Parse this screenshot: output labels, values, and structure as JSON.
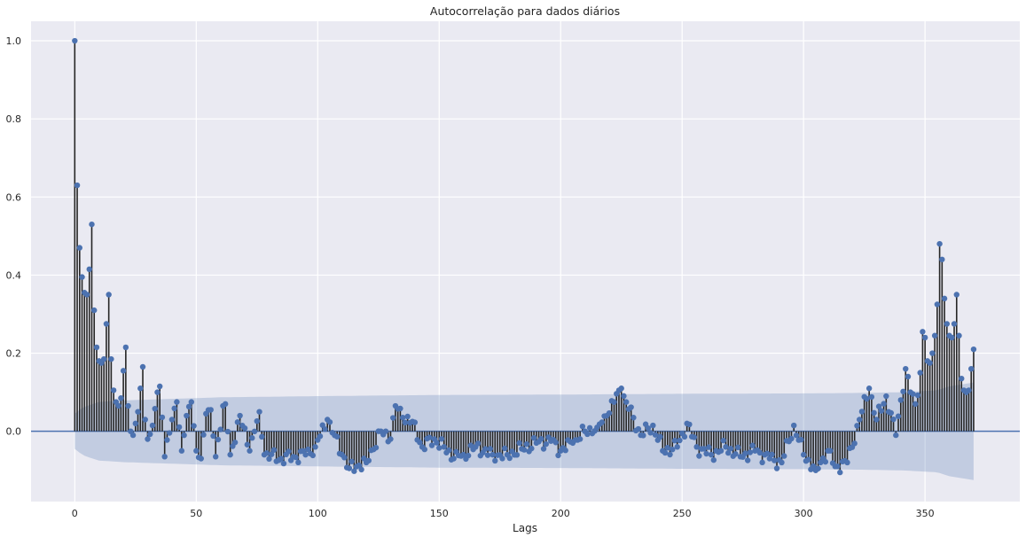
{
  "chart_data": {
    "type": "stem",
    "title": "Autocorrelação para dados diários",
    "xlabel": "Lags",
    "ylabel": "",
    "xlim": [
      -18,
      389
    ],
    "ylim": [
      -0.18,
      1.05
    ],
    "xticks": [
      0,
      50,
      100,
      150,
      200,
      250,
      300,
      350
    ],
    "xtick_labels": [
      "0",
      "50",
      "100",
      "150",
      "200",
      "250",
      "300",
      "350"
    ],
    "yticks": [
      0.0,
      0.2,
      0.4,
      0.6,
      0.8,
      1.0
    ],
    "ytick_labels": [
      "0.0",
      "0.2",
      "0.4",
      "0.6",
      "0.8",
      "1.0"
    ],
    "grid": true,
    "lags": [
      0,
      370
    ],
    "acf_anchors": [
      [
        0,
        1.0
      ],
      [
        1,
        0.63
      ],
      [
        2,
        0.47
      ],
      [
        3,
        0.395
      ],
      [
        4,
        0.355
      ],
      [
        5,
        0.35
      ],
      [
        6,
        0.415
      ],
      [
        7,
        0.53
      ],
      [
        8,
        0.31
      ],
      [
        9,
        0.215
      ],
      [
        10,
        0.18
      ],
      [
        11,
        0.175
      ],
      [
        12,
        0.185
      ],
      [
        13,
        0.275
      ],
      [
        14,
        0.35
      ],
      [
        15,
        0.185
      ],
      [
        16,
        0.105
      ],
      [
        17,
        0.075
      ],
      [
        18,
        0.065
      ],
      [
        19,
        0.085
      ],
      [
        20,
        0.155
      ],
      [
        21,
        0.215
      ],
      [
        22,
        0.065
      ],
      [
        23,
        0.0
      ],
      [
        24,
        -0.01
      ],
      [
        25,
        0.02
      ],
      [
        26,
        0.05
      ],
      [
        27,
        0.11
      ],
      [
        28,
        0.165
      ],
      [
        29,
        0.03
      ],
      [
        30,
        -0.02
      ],
      [
        32,
        0.015
      ],
      [
        34,
        0.1
      ],
      [
        35,
        0.115
      ],
      [
        37,
        -0.065
      ],
      [
        40,
        0.03
      ],
      [
        42,
        0.075
      ],
      [
        44,
        -0.05
      ],
      [
        46,
        0.04
      ],
      [
        48,
        0.075
      ],
      [
        50,
        -0.05
      ],
      [
        52,
        -0.07
      ],
      [
        54,
        0.045
      ],
      [
        56,
        0.055
      ],
      [
        58,
        -0.065
      ],
      [
        61,
        0.065
      ],
      [
        62,
        0.07
      ],
      [
        64,
        -0.06
      ],
      [
        68,
        0.04
      ],
      [
        72,
        -0.05
      ],
      [
        76,
        0.05
      ],
      [
        78,
        -0.06
      ],
      [
        85,
        -0.07
      ],
      [
        90,
        -0.065
      ],
      [
        95,
        -0.06
      ],
      [
        99,
        -0.04
      ],
      [
        104,
        0.03
      ],
      [
        110,
        -0.06
      ],
      [
        113,
        -0.095
      ],
      [
        120,
        -0.08
      ],
      [
        126,
        0.0
      ],
      [
        130,
        -0.02
      ],
      [
        132,
        0.065
      ],
      [
        135,
        0.035
      ],
      [
        139,
        0.025
      ],
      [
        143,
        -0.04
      ],
      [
        148,
        -0.02
      ],
      [
        152,
        -0.04
      ],
      [
        156,
        -0.07
      ],
      [
        160,
        -0.06
      ],
      [
        165,
        -0.04
      ],
      [
        172,
        -0.06
      ],
      [
        178,
        -0.06
      ],
      [
        184,
        -0.045
      ],
      [
        190,
        -0.03
      ],
      [
        196,
        -0.025
      ],
      [
        200,
        -0.05
      ],
      [
        205,
        -0.03
      ],
      [
        210,
        0.0
      ],
      [
        215,
        0.01
      ],
      [
        219,
        0.04
      ],
      [
        222,
        0.075
      ],
      [
        224,
        0.105
      ],
      [
        225,
        0.11
      ],
      [
        227,
        0.075
      ],
      [
        230,
        0.035
      ],
      [
        233,
        -0.01
      ],
      [
        238,
        0.015
      ],
      [
        242,
        -0.05
      ],
      [
        248,
        -0.04
      ],
      [
        252,
        0.02
      ],
      [
        256,
        -0.04
      ],
      [
        262,
        -0.06
      ],
      [
        268,
        -0.04
      ],
      [
        274,
        -0.065
      ],
      [
        280,
        -0.05
      ],
      [
        286,
        -0.07
      ],
      [
        291,
        -0.08
      ],
      [
        296,
        0.015
      ],
      [
        300,
        -0.06
      ],
      [
        305,
        -0.1
      ],
      [
        310,
        -0.05
      ],
      [
        313,
        -0.09
      ],
      [
        318,
        -0.08
      ],
      [
        323,
        0.03
      ],
      [
        327,
        0.11
      ],
      [
        330,
        0.03
      ],
      [
        334,
        0.09
      ],
      [
        338,
        -0.01
      ],
      [
        340,
        0.08
      ],
      [
        342,
        0.16
      ],
      [
        344,
        0.1
      ],
      [
        346,
        0.07
      ],
      [
        348,
        0.15
      ],
      [
        349,
        0.255
      ],
      [
        350,
        0.24
      ],
      [
        351,
        0.18
      ],
      [
        352,
        0.175
      ],
      [
        353,
        0.2
      ],
      [
        354,
        0.245
      ],
      [
        355,
        0.325
      ],
      [
        356,
        0.48
      ],
      [
        357,
        0.44
      ],
      [
        358,
        0.34
      ],
      [
        359,
        0.275
      ],
      [
        360,
        0.245
      ],
      [
        361,
        0.24
      ],
      [
        362,
        0.275
      ],
      [
        363,
        0.35
      ],
      [
        364,
        0.245
      ],
      [
        365,
        0.135
      ],
      [
        366,
        0.105
      ],
      [
        367,
        0.1
      ],
      [
        368,
        0.105
      ],
      [
        369,
        0.16
      ],
      [
        370,
        0.21
      ]
    ],
    "confidence_band": [
      [
        0,
        0.045
      ],
      [
        3,
        0.06
      ],
      [
        5,
        0.065
      ],
      [
        10,
        0.075
      ],
      [
        15,
        0.077
      ],
      [
        20,
        0.079
      ],
      [
        40,
        0.083
      ],
      [
        60,
        0.087
      ],
      [
        100,
        0.09
      ],
      [
        150,
        0.093
      ],
      [
        200,
        0.094
      ],
      [
        250,
        0.096
      ],
      [
        300,
        0.097
      ],
      [
        320,
        0.098
      ],
      [
        340,
        0.1
      ],
      [
        355,
        0.105
      ],
      [
        360,
        0.115
      ],
      [
        365,
        0.12
      ],
      [
        370,
        0.125
      ]
    ],
    "colors": {
      "background": "#eaeaf2",
      "grid": "#ffffff",
      "stem": "#262626",
      "marker": "#4c72b0",
      "band": "#4c72b0",
      "zero_line": "#4c72b0"
    }
  }
}
